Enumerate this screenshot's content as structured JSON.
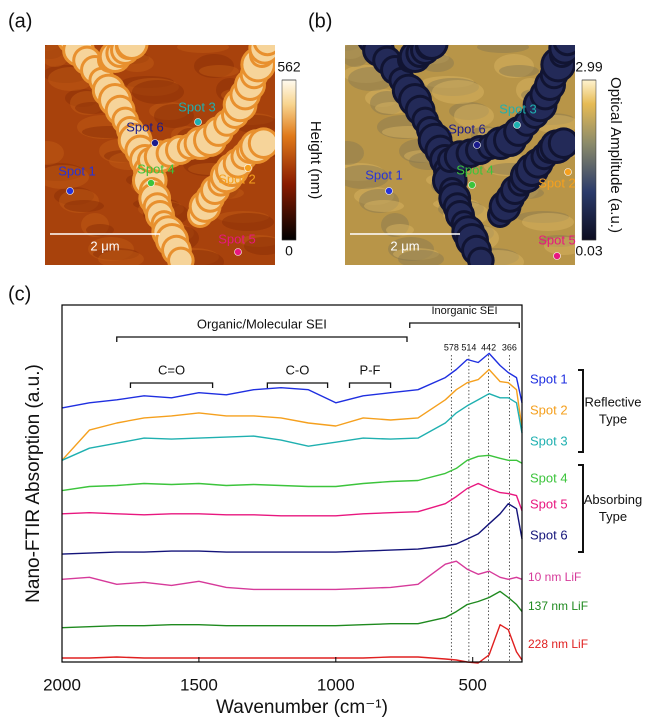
{
  "chart_data": [
    {
      "type": "image",
      "panel_label": "(a)",
      "colorbar_label": "Height (nm)",
      "clim": [
        0,
        562
      ],
      "cticks": [
        0,
        562
      ],
      "scale_bar": "2 μm",
      "spots": [
        "Spot 1",
        "Spot 2",
        "Spot 3",
        "Spot 4",
        "Spot 5",
        "Spot 6"
      ],
      "spot_colors": [
        "#2633d9",
        "#f5a01e",
        "#1fb0b0",
        "#3cc43c",
        "#e8177f",
        "#1a1a8c"
      ]
    },
    {
      "type": "image",
      "panel_label": "(b)",
      "colorbar_label": "Optical Amplitude (a.u.)",
      "clim": [
        0.03,
        2.99
      ],
      "cticks": [
        0.03,
        2.99
      ],
      "scale_bar": "2 μm",
      "spots": [
        "Spot 1",
        "Spot 2",
        "Spot 3",
        "Spot 4",
        "Spot 5",
        "Spot 6"
      ],
      "spot_colors": [
        "#2633d9",
        "#f5a01e",
        "#1fb0b0",
        "#3cc43c",
        "#e8177f",
        "#1a1a8c"
      ]
    },
    {
      "type": "line",
      "panel_label": "(c)",
      "xlabel": "Wavenumber (cm⁻¹)",
      "ylabel": "Nano-FTIR Absorption (a.u.)",
      "xlim": [
        2000,
        320
      ],
      "xticks": [
        2000,
        1500,
        1000,
        500
      ],
      "ylim": [
        0,
        354
      ],
      "x": [
        2000,
        1900,
        1800,
        1700,
        1600,
        1500,
        1400,
        1300,
        1200,
        1100,
        1000,
        900,
        800,
        700,
        600,
        560,
        520,
        480,
        440,
        400,
        370,
        340,
        320
      ],
      "series": [
        {
          "name": "Spot 1",
          "color": "#1f2fe0",
          "values": [
            252,
            257,
            260,
            264,
            262,
            267,
            265,
            270,
            272,
            270,
            257,
            264,
            267,
            270,
            282,
            290,
            300,
            297,
            306,
            294,
            287,
            282,
            257
          ]
        },
        {
          "name": "Spot 2",
          "color": "#f5a01e",
          "values": [
            200,
            230,
            237,
            242,
            244,
            247,
            244,
            244,
            242,
            237,
            234,
            242,
            240,
            242,
            260,
            270,
            277,
            280,
            290,
            278,
            277,
            270,
            232
          ]
        },
        {
          "name": "Spot 3",
          "color": "#1fb0b0",
          "values": [
            200,
            212,
            217,
            222,
            221,
            222,
            223,
            224,
            220,
            214,
            218,
            222,
            221,
            222,
            237,
            247,
            254,
            260,
            266,
            262,
            262,
            257,
            227
          ]
        },
        {
          "name": "Spot 4",
          "color": "#3cc43c",
          "values": [
            170,
            174,
            175,
            177,
            176,
            177,
            175,
            176,
            175,
            174,
            174,
            177,
            179,
            180,
            187,
            192,
            200,
            204,
            205,
            202,
            200,
            200,
            197
          ]
        },
        {
          "name": "Spot 5",
          "color": "#e8177f",
          "values": [
            147,
            148,
            147,
            146,
            147,
            147,
            146,
            146,
            145,
            145,
            145,
            147,
            148,
            149,
            157,
            164,
            172,
            177,
            172,
            168,
            167,
            165,
            150
          ]
        },
        {
          "name": "Spot 6",
          "color": "#14147a",
          "values": [
            107,
            108,
            109,
            109,
            110,
            110,
            109,
            109,
            109,
            109,
            109,
            110,
            111,
            112,
            115,
            117,
            122,
            127,
            137,
            147,
            157,
            152,
            122
          ]
        },
        {
          "name": "10 nm LiF",
          "color": "#d63a9a",
          "values": [
            82,
            84,
            77,
            79,
            76,
            80,
            74,
            72,
            72,
            72,
            72,
            73,
            74,
            77,
            97,
            100,
            92,
            87,
            90,
            84,
            82,
            84,
            82
          ]
        },
        {
          "name": "137 nm LiF",
          "color": "#1f8a1f",
          "values": [
            34,
            35,
            36,
            36,
            37,
            37,
            36,
            36,
            36,
            36,
            36,
            37,
            38,
            38,
            44,
            50,
            57,
            60,
            64,
            70,
            64,
            57,
            50
          ]
        },
        {
          "name": "228 nm LiF",
          "color": "#e02020",
          "values": [
            4,
            4,
            5,
            4,
            4,
            4,
            4,
            4,
            4,
            4,
            4,
            4,
            5,
            5,
            3,
            2,
            0,
            -1,
            7,
            37,
            32,
            10,
            2
          ]
        }
      ],
      "vlines": [
        578,
        514,
        442,
        366
      ],
      "brackets": [
        {
          "label": "Organic/Molecular SEI",
          "span": [
            1800,
            740
          ]
        },
        {
          "label": "Inorganic SEI",
          "span": [
            730,
            330
          ]
        },
        {
          "label": "C=O",
          "span": [
            1750,
            1450
          ]
        },
        {
          "label": "C-O",
          "span": [
            1250,
            1030
          ]
        },
        {
          "label": "P-F",
          "span": [
            950,
            800
          ]
        }
      ],
      "groups": [
        {
          "label": [
            "Reflective",
            "Type"
          ]
        },
        {
          "label": [
            "Absorbing",
            "Type"
          ]
        }
      ]
    }
  ]
}
